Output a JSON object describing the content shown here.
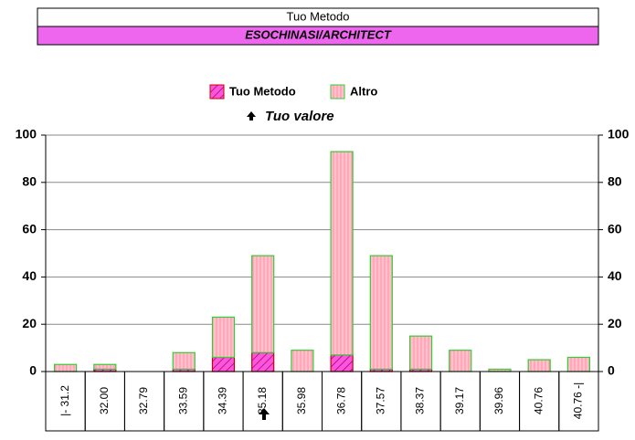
{
  "chart_data": {
    "type": "stacked_bar",
    "header": {
      "method": "Tuo Metodo",
      "name": "ESOCHINASI/ARCHITECT"
    },
    "annotation": "Tuo valore",
    "categories": [
      "|- 31.2",
      "32.00",
      "32.79",
      "33.59",
      "34.39",
      "35.18",
      "35.98",
      "36.78",
      "37.57",
      "38.37",
      "39.17",
      "39.96",
      "40.76",
      "40.76 -|"
    ],
    "series": [
      {
        "name": "Tuo Metodo",
        "color": "#ff55dd",
        "values": [
          0,
          1,
          0,
          1,
          6,
          8,
          0,
          7,
          1,
          1,
          0,
          0,
          0,
          0
        ]
      },
      {
        "name": "Altro",
        "color": "#ffb3c6",
        "values": [
          3,
          2,
          0,
          7,
          17,
          41,
          9,
          86,
          48,
          14,
          9,
          1,
          5,
          6
        ]
      }
    ],
    "ylim": [
      0,
      100
    ],
    "yticks": [
      0,
      20,
      40,
      60,
      80,
      100
    ],
    "y2lim": [
      0,
      100
    ],
    "y2ticks": [
      0,
      20,
      40,
      60,
      80,
      100
    ],
    "grid": true
  }
}
